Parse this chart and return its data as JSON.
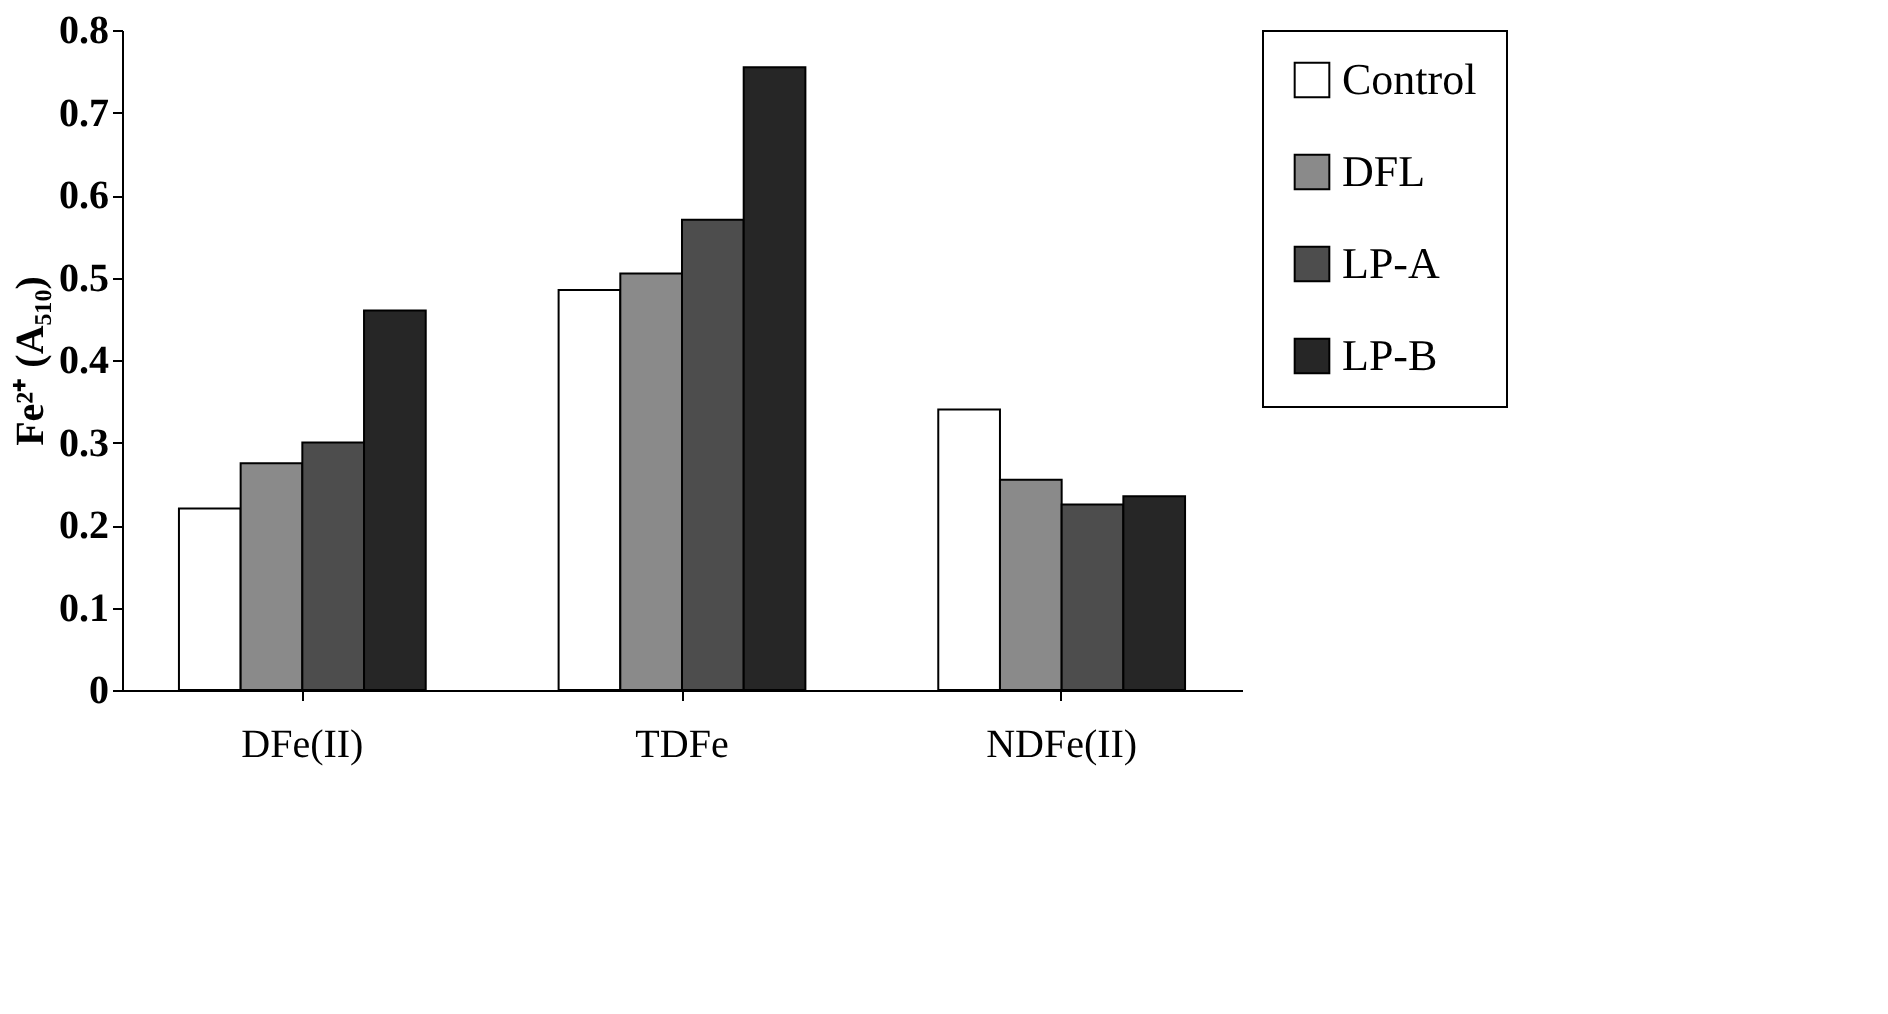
{
  "chart_data": {
    "type": "bar",
    "ylabel": "Fe²⁺ (A₅₁₀)",
    "categories": [
      "DFe(II)",
      "TDFe",
      "NDFe(II)"
    ],
    "series": [
      {
        "name": "Control",
        "color": "#ffffff",
        "values": [
          0.22,
          0.485,
          0.34
        ]
      },
      {
        "name": "DFL",
        "color": "#8a8a8a",
        "values": [
          0.275,
          0.505,
          0.255
        ]
      },
      {
        "name": "LP-A",
        "color": "#4d4d4d",
        "values": [
          0.3,
          0.57,
          0.225
        ]
      },
      {
        "name": "LP-B",
        "color": "#262626",
        "values": [
          0.46,
          0.755,
          0.235
        ]
      }
    ],
    "ylim": [
      0,
      0.8
    ],
    "yticks": [
      0,
      0.1,
      0.2,
      0.3,
      0.4,
      0.5,
      0.6,
      0.7,
      0.8
    ],
    "grid": false,
    "legend": "right"
  }
}
